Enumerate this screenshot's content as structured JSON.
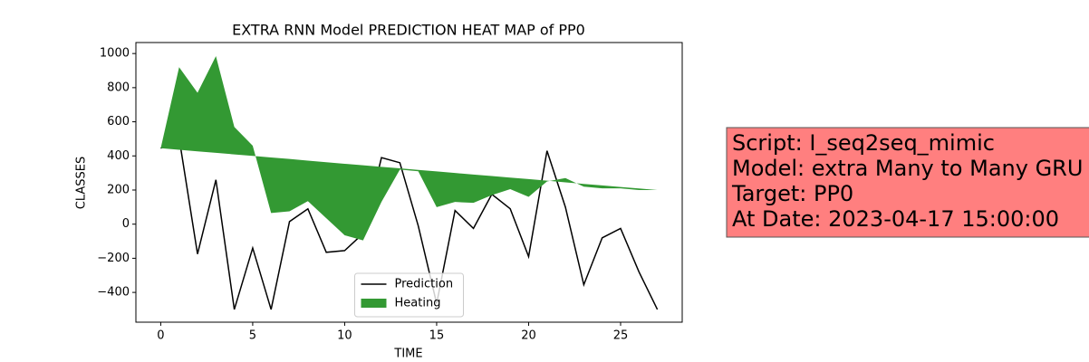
{
  "chart_data": {
    "type": "line",
    "title": "EXTRA RNN Model PREDICTION HEAT MAP of PP0",
    "x_label": "TIME",
    "y_label": "CLASSES",
    "x": [
      0,
      1,
      2,
      3,
      4,
      5,
      6,
      7,
      8,
      9,
      10,
      11,
      12,
      13,
      14,
      15,
      16,
      17,
      18,
      19,
      20,
      21,
      22,
      23,
      24,
      25,
      26,
      27
    ],
    "xlim": [
      -1.35,
      28.35
    ],
    "ylim": [
      -574.5,
      1064.5
    ],
    "xticks": [
      0,
      5,
      10,
      15,
      20,
      25
    ],
    "yticks": [
      {
        "value": -400,
        "label": "−400"
      },
      {
        "value": -200,
        "label": "−200"
      },
      0,
      200,
      400,
      600,
      800,
      1000
    ],
    "legend": "lower center",
    "series": [
      {
        "name": "Prediction",
        "color": "#000000",
        "values": [
          445,
          505,
          -175,
          260,
          -500,
          -140,
          -500,
          15,
          90,
          -165,
          -155,
          -55,
          390,
          360,
          -10,
          -465,
          80,
          -25,
          175,
          90,
          -190,
          430,
          100,
          -355,
          -80,
          -25,
          -280,
          -500
        ]
      },
      {
        "name": "Heating",
        "type": "fill_between",
        "color": "#339933",
        "values": [
          445,
          436,
          427,
          418,
          409,
          400,
          391,
          382,
          372,
          363,
          354,
          345,
          336,
          327,
          318,
          309,
          300,
          291,
          282,
          273,
          264,
          255,
          245,
          236,
          227,
          218,
          209,
          200
        ],
        "values2": [
          445,
          920,
          770,
          985,
          570,
          460,
          65,
          75,
          135,
          35,
          -65,
          -95,
          130,
          320,
          310,
          100,
          130,
          125,
          170,
          205,
          160,
          250,
          270,
          220,
          210,
          210,
          200,
          200
        ]
      }
    ]
  },
  "text_box": {
    "color": "#ff7f7f",
    "lines": [
      "Script: I_seq2seq_mimic",
      "Model: extra Many to Many GRU",
      "Target: PP0",
      "At Date: 2023-04-17 15:00:00"
    ]
  }
}
